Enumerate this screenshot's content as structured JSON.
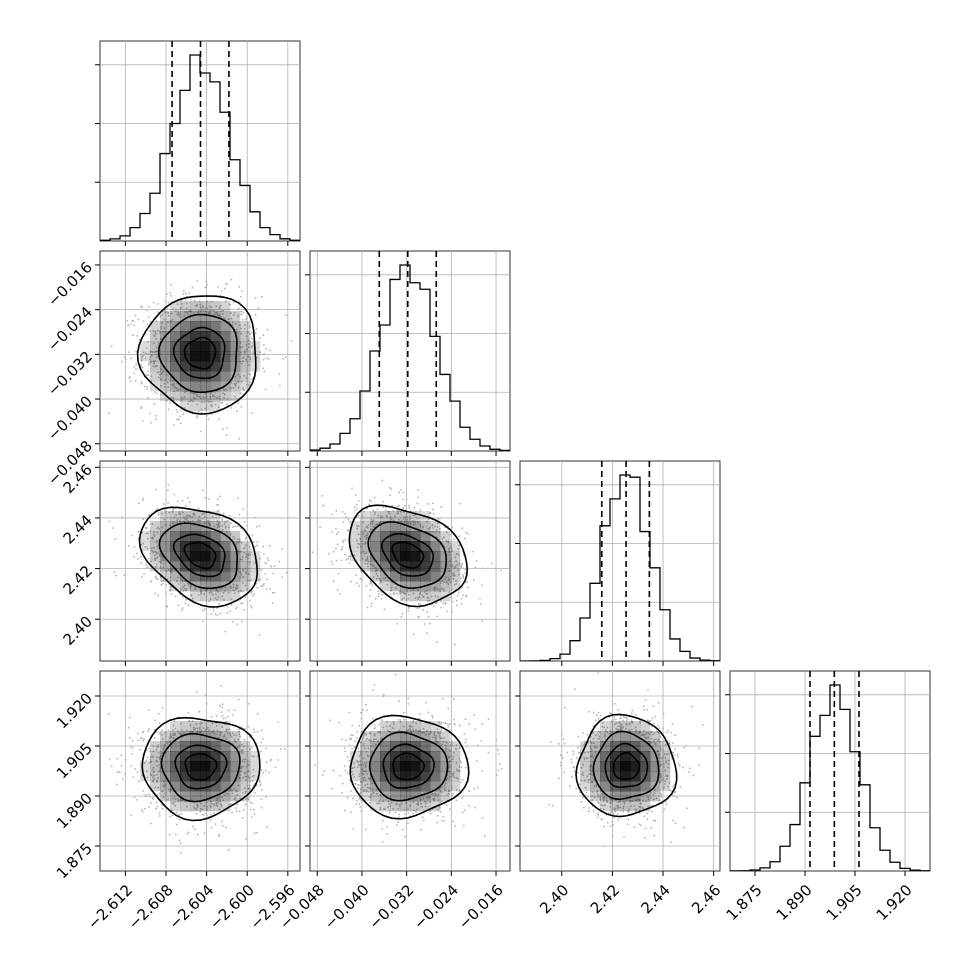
{
  "chart_data": {
    "type": "corner",
    "parameters": [
      {
        "range": [
          -2.6145,
          -2.5948
        ],
        "ticks": [
          "−2.612",
          "−2.608",
          "−2.604",
          "−2.600",
          "−2.596"
        ],
        "tick_values": [
          -2.612,
          -2.608,
          -2.604,
          -2.6,
          -2.596
        ],
        "median": -2.6046,
        "q16": -2.6074,
        "q84": -2.6018,
        "std": 0.0028
      },
      {
        "range": [
          -0.0493,
          -0.0135
        ],
        "ticks": [
          "−0.048",
          "−0.040",
          "−0.032",
          "−0.024",
          "−0.016"
        ],
        "tick_values": [
          -0.048,
          -0.04,
          -0.032,
          -0.024,
          -0.016
        ],
        "median": -0.0318,
        "q16": -0.0369,
        "q84": -0.0267,
        "std": 0.0051
      },
      {
        "range": [
          2.3835,
          2.4625
        ],
        "ticks": [
          "2.40",
          "2.42",
          "2.44",
          "2.46"
        ],
        "tick_values": [
          2.4,
          2.42,
          2.44,
          2.46
        ],
        "median": 2.4254,
        "q16": 2.4158,
        "q84": 2.4346,
        "std": 0.0094
      },
      {
        "range": [
          1.8675,
          1.9275
        ],
        "ticks": [
          "1.875",
          "1.890",
          "1.905",
          "1.920"
        ],
        "tick_values": [
          1.875,
          1.89,
          1.905,
          1.92
        ],
        "median": 1.8988,
        "q16": 1.8915,
        "q84": 1.9062,
        "std": 0.0073
      }
    ],
    "hist_density_ticks": [
      0.3,
      0.6,
      0.9
    ],
    "correlations": [
      [
        1,
        0,
        -0.3,
        0.0
      ],
      [
        0,
        1,
        -0.3,
        0.0
      ],
      [
        -0.3,
        -0.3,
        1,
        0.0
      ],
      [
        0.0,
        0.0,
        0.0,
        1
      ]
    ],
    "contour_levels_sigma": [
      0.5,
      1.0,
      1.5,
      2.0
    ],
    "grid": true,
    "colors": {
      "points": "#b4b4b4",
      "density": "#000000"
    }
  }
}
